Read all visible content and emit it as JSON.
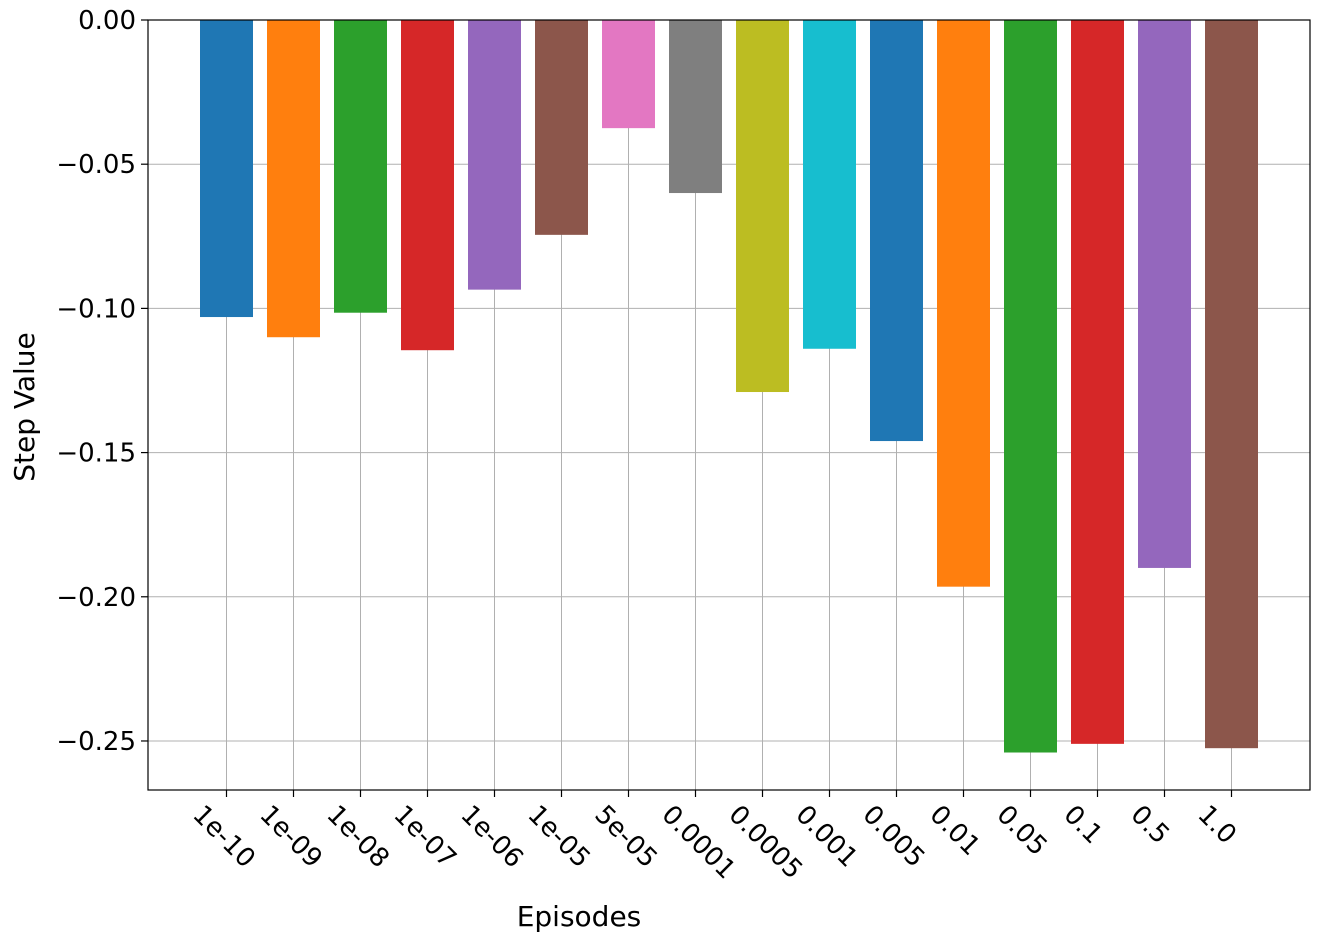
{
  "chart_data": {
    "type": "bar",
    "xlabel": "Episodes",
    "ylabel": "Step Value",
    "ylim": [
      -0.267,
      0.0
    ],
    "yticks": [
      0.0,
      -0.05,
      -0.1,
      -0.15,
      -0.2,
      -0.25
    ],
    "ytick_labels": [
      "0.00",
      "−0.05",
      "−0.10",
      "−0.15",
      "−0.20",
      "−0.25"
    ],
    "grid": true,
    "categories": [
      "1e-10",
      "1e-09",
      "1e-08",
      "1e-07",
      "1e-06",
      "1e-05",
      "5e-05",
      "0.0001",
      "0.0005",
      "0.001",
      "0.005",
      "0.01",
      "0.05",
      "0.1",
      "0.5",
      "1.0"
    ],
    "values": [
      -0.103,
      -0.11,
      -0.1015,
      -0.1145,
      -0.0935,
      -0.0745,
      -0.0375,
      -0.06,
      -0.129,
      -0.114,
      -0.146,
      -0.1965,
      -0.254,
      -0.251,
      -0.19,
      -0.2525
    ],
    "colors": [
      "#1f77b4",
      "#ff7f0e",
      "#2ca02c",
      "#d62728",
      "#9467bd",
      "#8c564b",
      "#e377c2",
      "#7f7f7f",
      "#bcbd22",
      "#17becf",
      "#1f77b4",
      "#ff7f0e",
      "#2ca02c",
      "#d62728",
      "#9467bd",
      "#8c564b"
    ]
  }
}
